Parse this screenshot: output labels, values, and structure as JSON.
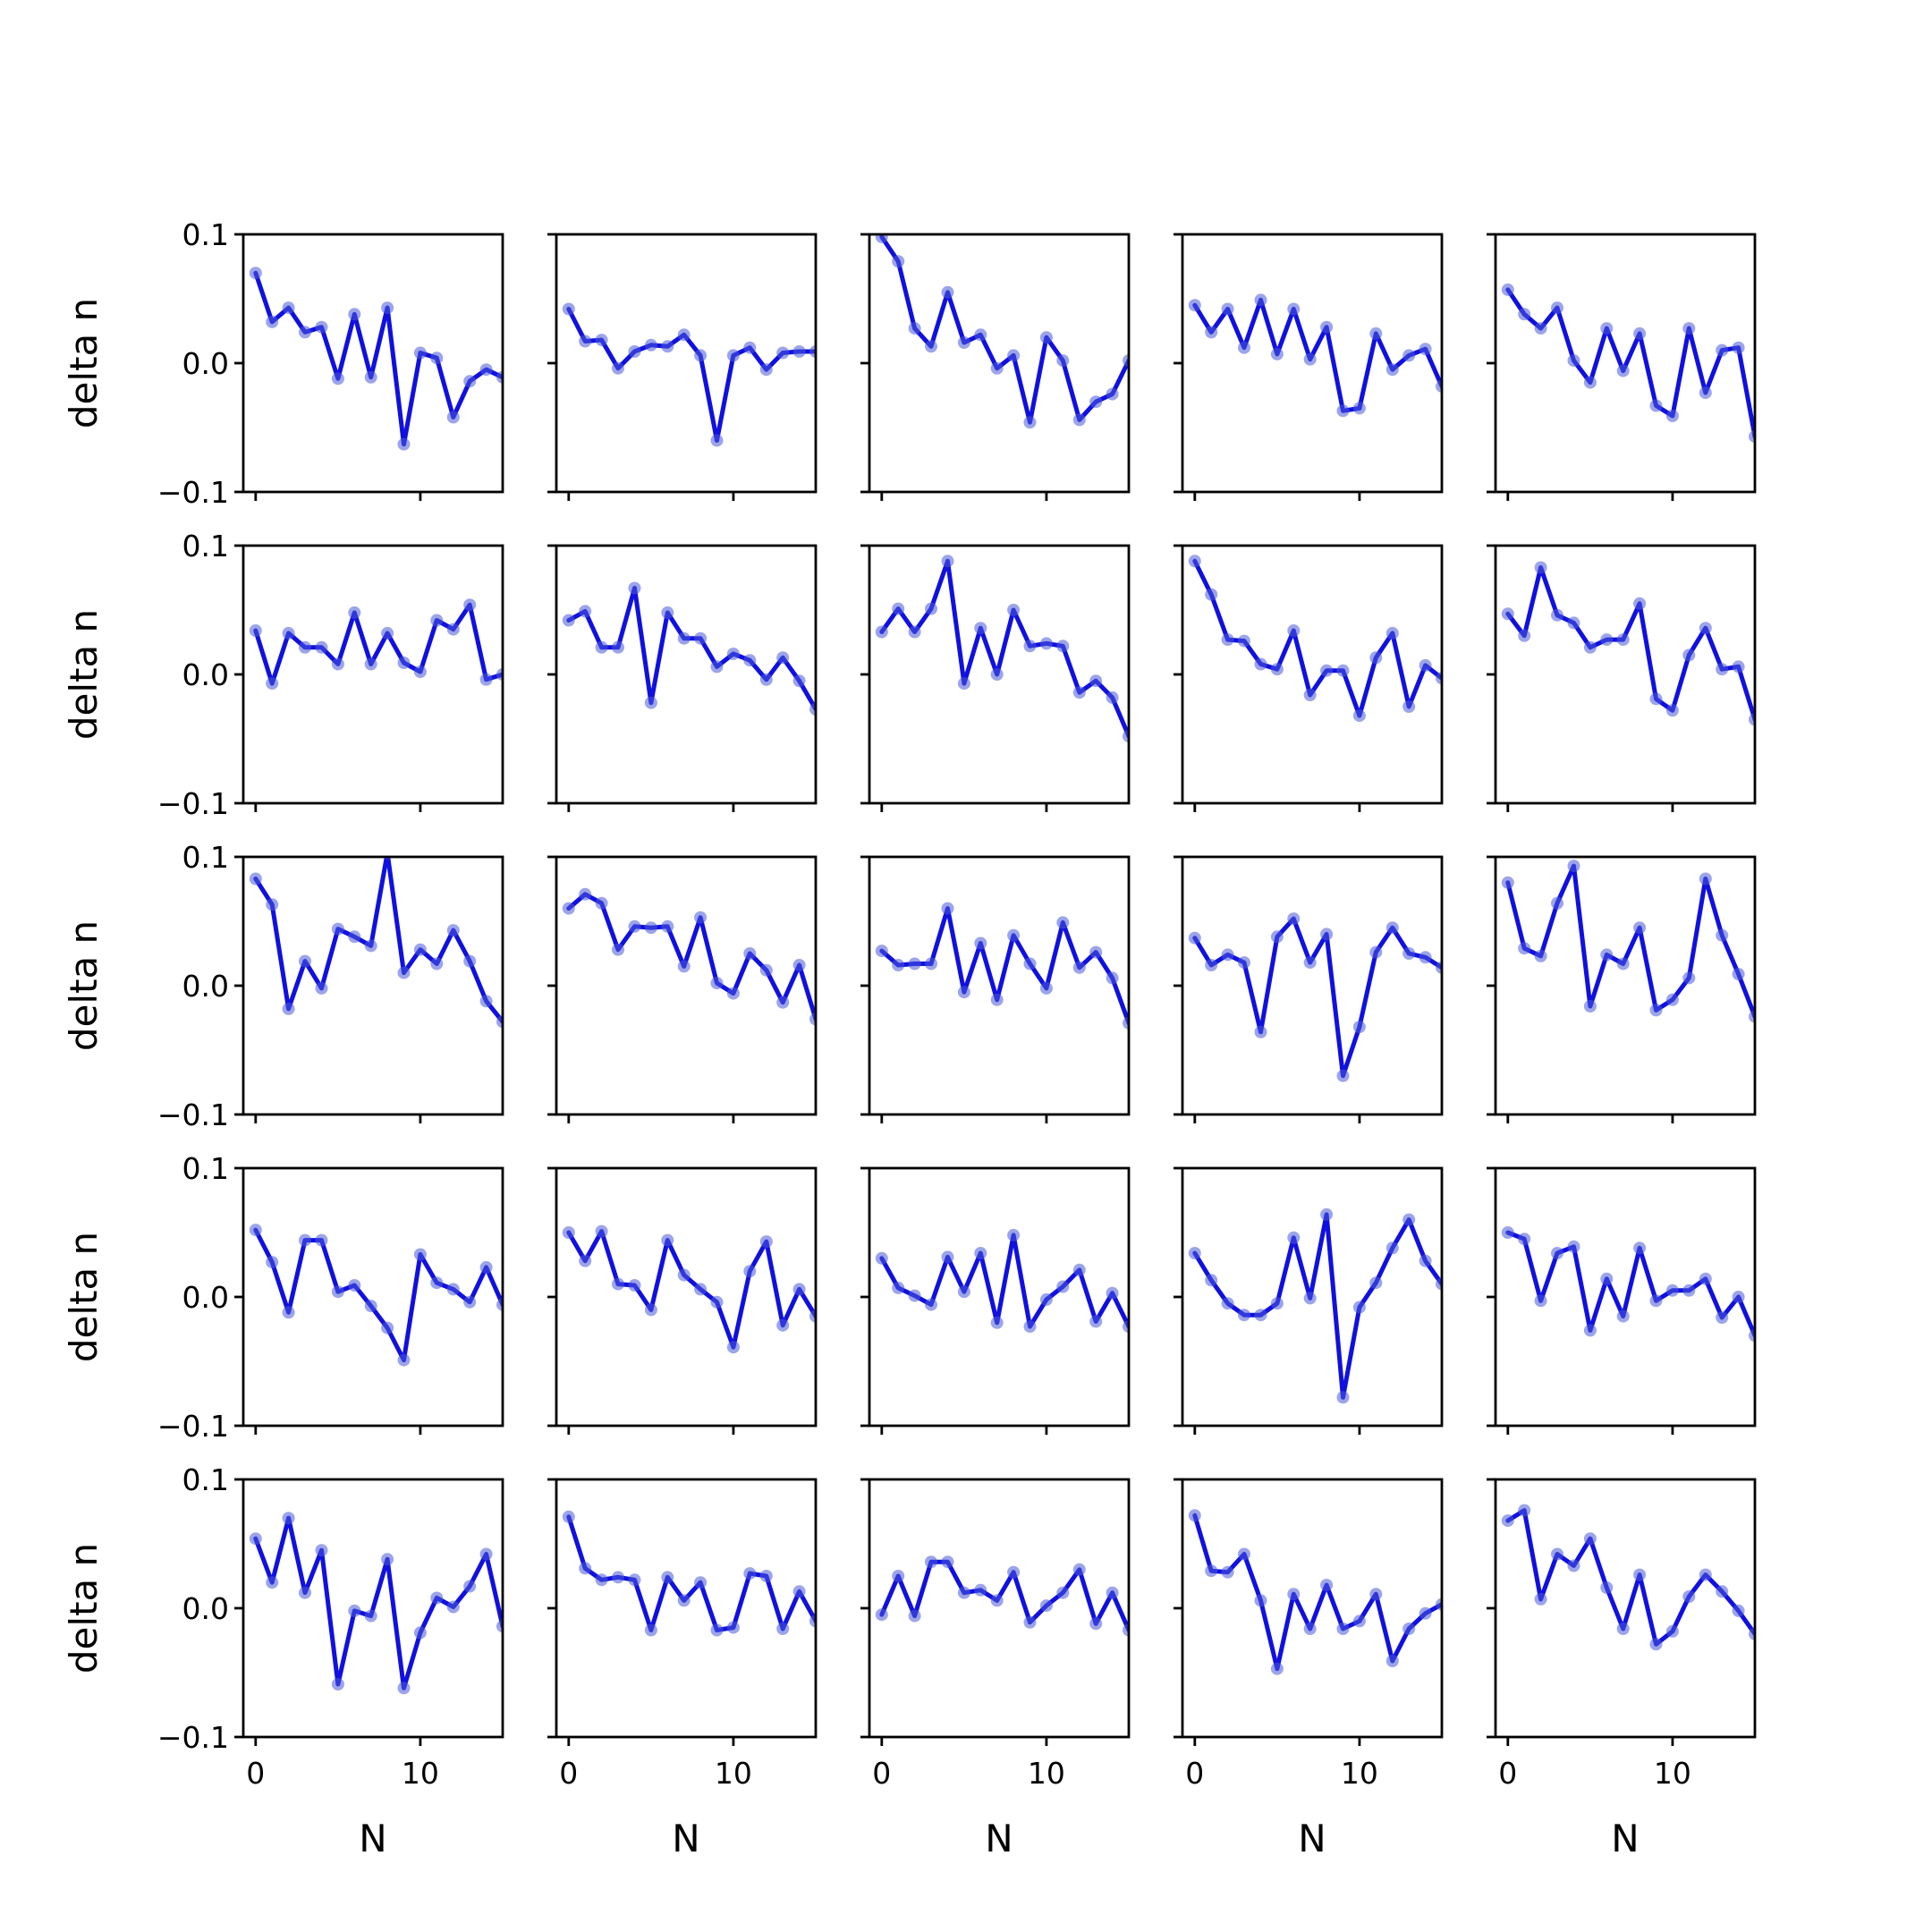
{
  "chart_data": {
    "type": "line",
    "layout": {
      "rows": 5,
      "cols": 5
    },
    "x": [
      0,
      1,
      2,
      3,
      4,
      5,
      6,
      7,
      8,
      9,
      10,
      11,
      12,
      13,
      14,
      15
    ],
    "xlabel": "N",
    "ylabel": "delta n",
    "xlim": [
      -0.75,
      15.0
    ],
    "ylim": [
      -0.1,
      0.1
    ],
    "xticks": [
      0,
      10
    ],
    "yticks": [
      -0.1,
      0.0,
      0.1
    ],
    "xtick_labels": [
      "0",
      "10"
    ],
    "ytick_labels": [
      "−0.1",
      "0.0",
      "0.1"
    ],
    "grid": false,
    "legend": false,
    "colors": {
      "line": "#1010e0",
      "marker": "#4a5ad8",
      "axes": "#000000"
    },
    "panels": [
      {
        "row": 1,
        "col": 1,
        "values": [
          0.07,
          0.032,
          0.043,
          0.024,
          0.028,
          -0.012,
          0.038,
          -0.011,
          0.043,
          -0.063,
          0.008,
          0.004,
          -0.042,
          -0.014,
          -0.005,
          -0.011
        ]
      },
      {
        "row": 1,
        "col": 2,
        "values": [
          0.042,
          0.017,
          0.018,
          -0.004,
          0.009,
          0.014,
          0.013,
          0.022,
          0.006,
          -0.06,
          0.006,
          0.012,
          -0.005,
          0.008,
          0.009,
          0.009
        ]
      },
      {
        "row": 1,
        "col": 3,
        "values": [
          0.098,
          0.079,
          0.027,
          0.013,
          0.055,
          0.016,
          0.022,
          -0.004,
          0.006,
          -0.046,
          0.02,
          0.002,
          -0.044,
          -0.03,
          -0.024,
          0.002
        ]
      },
      {
        "row": 1,
        "col": 4,
        "values": [
          0.045,
          0.024,
          0.042,
          0.012,
          0.049,
          0.007,
          0.042,
          0.003,
          0.028,
          -0.037,
          -0.035,
          0.023,
          -0.005,
          0.006,
          0.011,
          -0.018
        ]
      },
      {
        "row": 1,
        "col": 5,
        "values": [
          0.057,
          0.038,
          0.027,
          0.043,
          0.002,
          -0.015,
          0.027,
          -0.006,
          0.023,
          -0.033,
          -0.041,
          0.027,
          -0.023,
          0.01,
          0.012,
          -0.057
        ]
      },
      {
        "row": 2,
        "col": 1,
        "values": [
          0.034,
          -0.007,
          0.032,
          0.021,
          0.021,
          0.008,
          0.048,
          0.008,
          0.032,
          0.009,
          0.002,
          0.042,
          0.035,
          0.054,
          -0.004,
          0.0
        ]
      },
      {
        "row": 2,
        "col": 2,
        "values": [
          0.042,
          0.049,
          0.021,
          0.021,
          0.067,
          -0.022,
          0.048,
          0.028,
          0.028,
          0.006,
          0.016,
          0.011,
          -0.004,
          0.013,
          -0.005,
          -0.027
        ]
      },
      {
        "row": 2,
        "col": 3,
        "values": [
          0.033,
          0.051,
          0.033,
          0.051,
          0.088,
          -0.007,
          0.036,
          0.0,
          0.05,
          0.022,
          0.024,
          0.022,
          -0.014,
          -0.005,
          -0.018,
          -0.048
        ]
      },
      {
        "row": 2,
        "col": 4,
        "values": [
          0.088,
          0.062,
          0.027,
          0.026,
          0.008,
          0.004,
          0.034,
          -0.016,
          0.003,
          0.003,
          -0.032,
          0.013,
          0.032,
          -0.025,
          0.007,
          -0.003
        ]
      },
      {
        "row": 2,
        "col": 5,
        "values": [
          0.047,
          0.03,
          0.083,
          0.046,
          0.04,
          0.021,
          0.027,
          0.027,
          0.055,
          -0.019,
          -0.028,
          0.015,
          0.036,
          0.004,
          0.006,
          -0.035
        ]
      },
      {
        "row": 3,
        "col": 1,
        "values": [
          0.083,
          0.063,
          -0.018,
          0.019,
          -0.002,
          0.044,
          0.038,
          0.031,
          0.103,
          0.01,
          0.028,
          0.017,
          0.043,
          0.019,
          -0.012,
          -0.028
        ]
      },
      {
        "row": 3,
        "col": 2,
        "values": [
          0.06,
          0.071,
          0.064,
          0.028,
          0.046,
          0.045,
          0.046,
          0.015,
          0.053,
          0.002,
          -0.006,
          0.025,
          0.012,
          -0.013,
          0.016,
          -0.026
        ]
      },
      {
        "row": 3,
        "col": 3,
        "values": [
          0.027,
          0.016,
          0.017,
          0.017,
          0.06,
          -0.005,
          0.033,
          -0.011,
          0.039,
          0.017,
          -0.002,
          0.049,
          0.014,
          0.026,
          0.006,
          -0.029
        ]
      },
      {
        "row": 3,
        "col": 4,
        "values": [
          0.037,
          0.016,
          0.024,
          0.018,
          -0.036,
          0.038,
          0.052,
          0.018,
          0.04,
          -0.07,
          -0.032,
          0.026,
          0.045,
          0.025,
          0.022,
          0.014
        ]
      },
      {
        "row": 3,
        "col": 5,
        "values": [
          0.08,
          0.029,
          0.023,
          0.064,
          0.093,
          -0.016,
          0.024,
          0.017,
          0.045,
          -0.019,
          -0.011,
          0.006,
          0.083,
          0.039,
          0.009,
          -0.024
        ]
      },
      {
        "row": 4,
        "col": 1,
        "values": [
          0.052,
          0.027,
          -0.012,
          0.044,
          0.044,
          0.004,
          0.009,
          -0.007,
          -0.024,
          -0.049,
          0.033,
          0.011,
          0.006,
          -0.004,
          0.023,
          -0.006
        ]
      },
      {
        "row": 4,
        "col": 2,
        "values": [
          0.05,
          0.028,
          0.051,
          0.01,
          0.009,
          -0.01,
          0.044,
          0.017,
          0.006,
          -0.004,
          -0.039,
          0.02,
          0.043,
          -0.022,
          0.006,
          -0.015
        ]
      },
      {
        "row": 4,
        "col": 3,
        "values": [
          0.03,
          0.007,
          0.001,
          -0.006,
          0.031,
          0.004,
          0.034,
          -0.02,
          0.048,
          -0.023,
          -0.002,
          0.008,
          0.021,
          -0.019,
          0.003,
          -0.023
        ]
      },
      {
        "row": 4,
        "col": 4,
        "values": [
          0.034,
          0.013,
          -0.005,
          -0.014,
          -0.014,
          -0.005,
          0.046,
          -0.001,
          0.064,
          -0.078,
          -0.008,
          0.011,
          0.038,
          0.06,
          0.028,
          0.01
        ]
      },
      {
        "row": 4,
        "col": 5,
        "values": [
          0.05,
          0.045,
          -0.003,
          0.034,
          0.039,
          -0.026,
          0.014,
          -0.015,
          0.038,
          -0.003,
          0.005,
          0.005,
          0.014,
          -0.016,
          0.0,
          -0.03
        ]
      },
      {
        "row": 5,
        "col": 1,
        "values": [
          0.054,
          0.02,
          0.07,
          0.012,
          0.045,
          -0.059,
          -0.002,
          -0.006,
          0.038,
          -0.062,
          -0.019,
          0.008,
          0.001,
          0.017,
          0.042,
          -0.014
        ]
      },
      {
        "row": 5,
        "col": 2,
        "values": [
          0.071,
          0.031,
          0.022,
          0.024,
          0.022,
          -0.017,
          0.024,
          0.006,
          0.02,
          -0.017,
          -0.015,
          0.027,
          0.025,
          -0.016,
          0.013,
          -0.01
        ]
      },
      {
        "row": 5,
        "col": 3,
        "values": [
          -0.005,
          0.025,
          -0.006,
          0.036,
          0.036,
          0.012,
          0.014,
          0.006,
          0.028,
          -0.011,
          0.002,
          0.012,
          0.03,
          -0.012,
          0.012,
          -0.017
        ]
      },
      {
        "row": 5,
        "col": 4,
        "values": [
          0.072,
          0.029,
          0.028,
          0.042,
          0.006,
          -0.047,
          0.011,
          -0.016,
          0.018,
          -0.016,
          -0.01,
          0.011,
          -0.041,
          -0.016,
          -0.004,
          0.003
        ]
      },
      {
        "row": 5,
        "col": 5,
        "values": [
          0.068,
          0.076,
          0.007,
          0.042,
          0.033,
          0.054,
          0.016,
          -0.016,
          0.026,
          -0.028,
          -0.018,
          0.009,
          0.026,
          0.013,
          -0.002,
          -0.02
        ]
      }
    ]
  }
}
